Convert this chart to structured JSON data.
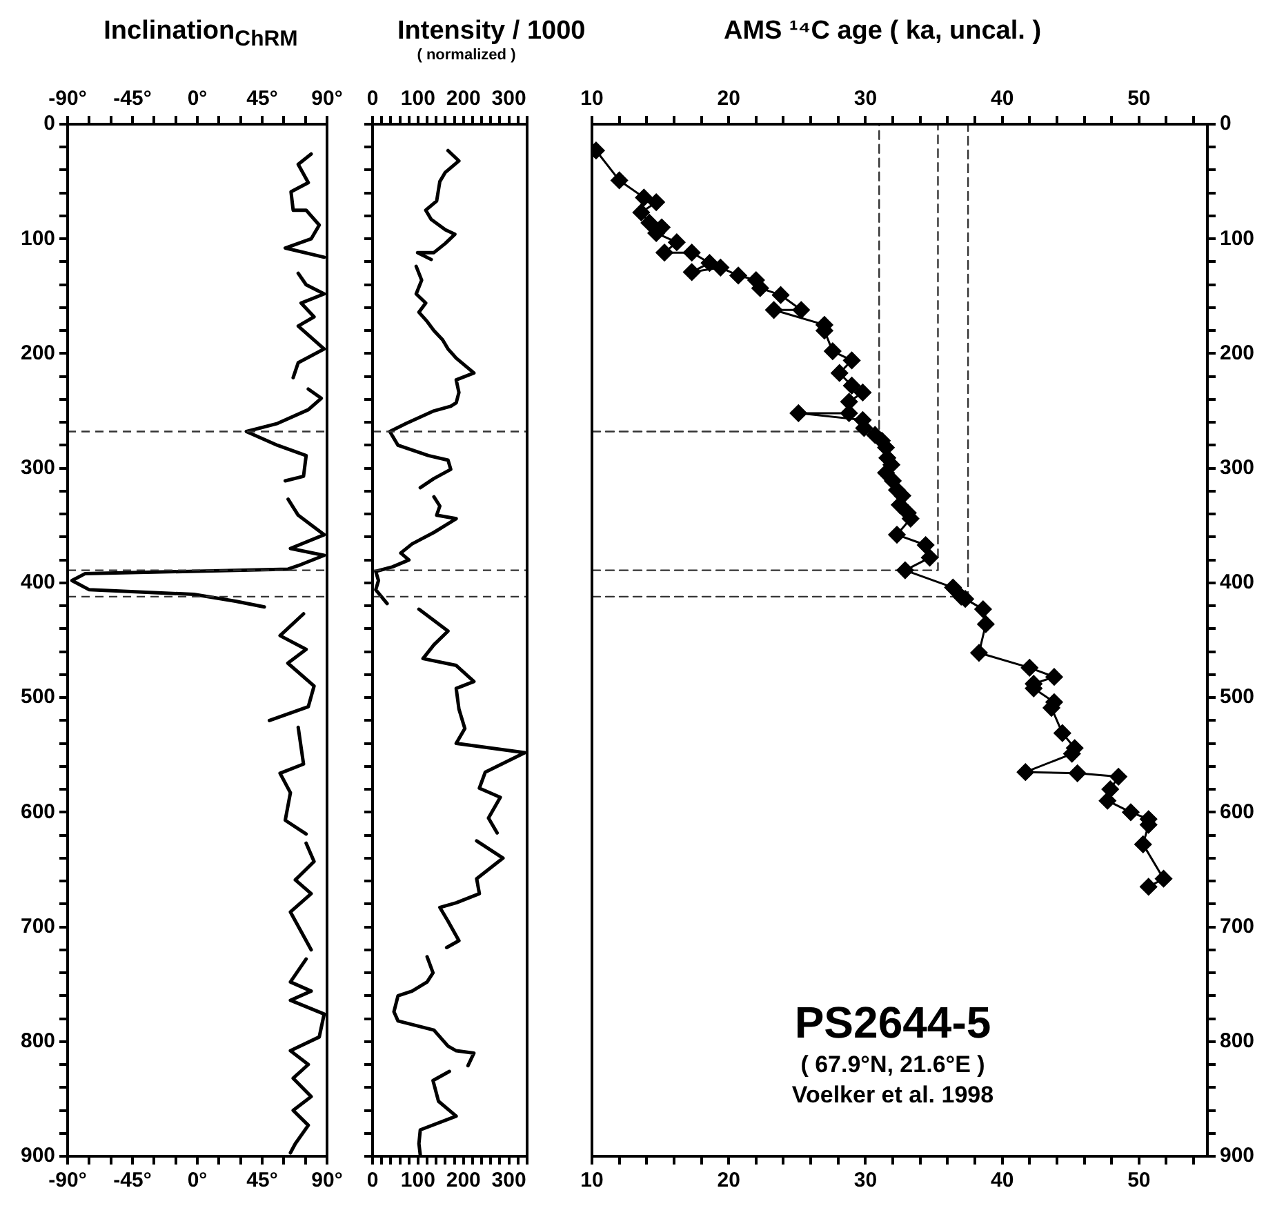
{
  "chart_data": [
    {
      "type": "line",
      "title": "Inclination$_{ChRM}$",
      "xlim": [
        -90,
        90
      ],
      "xticks": [
        {
          "value": -90,
          "label": "-90°"
        },
        {
          "value": -75,
          "label": null
        },
        {
          "value": -60,
          "label": null
        },
        {
          "value": -45,
          "label": "-45°"
        },
        {
          "value": -30,
          "label": null
        },
        {
          "value": -15,
          "label": null
        },
        {
          "value": 0,
          "label": "0°"
        },
        {
          "value": 15,
          "label": null
        },
        {
          "value": 30,
          "label": null
        },
        {
          "value": 45,
          "label": "45°"
        },
        {
          "value": 60,
          "label": null
        },
        {
          "value": 75,
          "label": null
        },
        {
          "value": 90,
          "label": "90°"
        }
      ],
      "x2lim": [
        -90,
        90
      ],
      "x2ticks": [
        {
          "value": -90,
          "label": "-90°"
        },
        {
          "value": -75,
          "label": null
        },
        {
          "value": -60,
          "label": null
        },
        {
          "value": -45,
          "label": "-45°"
        },
        {
          "value": -30,
          "label": null
        },
        {
          "value": -15,
          "label": null
        },
        {
          "value": 0,
          "label": "0°"
        },
        {
          "value": 15,
          "label": null
        },
        {
          "value": 30,
          "label": null
        },
        {
          "value": 45,
          "label": "45°"
        },
        {
          "value": 60,
          "label": null
        },
        {
          "value": 75,
          "label": null
        },
        {
          "value": 90,
          "label": "90°"
        }
      ],
      "ylim": [
        900,
        0
      ],
      "yticks": [
        0,
        {
          "value": 20,
          "label": null
        },
        {
          "value": 40,
          "label": null
        },
        {
          "value": 60,
          "label": null
        },
        {
          "value": 80,
          "label": null
        },
        100,
        {
          "value": 120,
          "label": null
        },
        {
          "value": 140,
          "label": null
        },
        {
          "value": 160,
          "label": null
        },
        {
          "value": 180,
          "label": null
        },
        200,
        {
          "value": 220,
          "label": null
        },
        {
          "value": 240,
          "label": null
        },
        {
          "value": 260,
          "label": null
        },
        {
          "value": 280,
          "label": null
        },
        300,
        {
          "value": 320,
          "label": null
        },
        {
          "value": 340,
          "label": null
        },
        {
          "value": 360,
          "label": null
        },
        {
          "value": 380,
          "label": null
        },
        400,
        {
          "value": 420,
          "label": null
        },
        {
          "value": 440,
          "label": null
        },
        {
          "value": 460,
          "label": null
        },
        {
          "value": 480,
          "label": null
        },
        500,
        {
          "value": 520,
          "label": null
        },
        {
          "value": 540,
          "label": null
        },
        {
          "value": 560,
          "label": null
        },
        {
          "value": 580,
          "label": null
        },
        600,
        {
          "value": 620,
          "label": null
        },
        {
          "value": 640,
          "label": null
        },
        {
          "value": 660,
          "label": null
        },
        {
          "value": 680,
          "label": null
        },
        700,
        {
          "value": 720,
          "label": null
        },
        {
          "value": 740,
          "label": null
        },
        {
          "value": 760,
          "label": null
        },
        {
          "value": 780,
          "label": null
        },
        800,
        {
          "value": 820,
          "label": null
        },
        {
          "value": 840,
          "label": null
        },
        {
          "value": 860,
          "label": null
        },
        {
          "value": 880,
          "label": null
        },
        900
      ],
      "series": [
        {
          "color": "#000000",
          "x": [
            79,
            70,
            77,
            65,
            66.5,
            75.5,
            84.6,
            79,
            61,
            88,
            null,
            70,
            75.5,
            88,
            72,
            81,
            70,
            88,
            70,
            66.5,
            null,
            77,
            86,
            77,
            55.6,
            34,
            55.6,
            75.5,
            73.7,
            61,
            null,
            63,
            70,
            88,
            64.6,
            88,
            72,
            63,
            -78,
            -87,
            -75,
            -2.4,
            26.6,
            46.5,
            null,
            73.7,
            57.4,
            75.5,
            62.8,
            81,
            77,
            50,
            null,
            70,
            73.7,
            57.4,
            64.6,
            61,
            75.5,
            null,
            75.5,
            81,
            68,
            79,
            64.6,
            79,
            null,
            75.5,
            64.6,
            79,
            64.6,
            88,
            84.6,
            64.6,
            77,
            66.5,
            79,
            66.5,
            77,
            68,
            64.6
          ],
          "values": [
            26,
            35,
            51,
            59,
            75,
            75,
            88,
            100,
            108,
            116,
            null,
            130,
            140,
            148,
            156,
            168,
            176,
            196,
            208,
            221,
            null,
            231,
            239,
            249,
            261,
            268,
            280,
            289,
            307,
            311,
            null,
            327,
            341,
            358,
            370,
            376,
            384,
            388,
            392,
            398,
            406,
            410,
            416,
            421,
            null,
            427,
            446,
            458,
            470,
            490,
            508,
            520,
            null,
            526,
            558,
            566,
            583,
            607,
            619,
            null,
            627,
            643,
            659,
            671,
            687,
            720,
            null,
            728,
            748,
            756,
            764,
            776,
            796,
            808,
            820,
            832,
            848,
            860,
            873,
            889,
            897
          ]
        }
      ],
      "ref_lines": [
        {
          "axis": "y",
          "value": 268,
          "color": "#333333",
          "line_style": "dashed"
        },
        {
          "axis": "y",
          "value": 389,
          "color": "#333333",
          "line_style": "dashed"
        },
        {
          "axis": "y",
          "value": 412,
          "color": "#333333",
          "line_style": "dashed"
        }
      ]
    },
    {
      "type": "line",
      "title": "Intensity / 1000",
      "subtitle": "( normalized )",
      "xlim": [
        0,
        340
      ],
      "xticks": [
        0,
        {
          "value": 20,
          "label": null
        },
        {
          "value": 40,
          "label": null
        },
        {
          "value": 60,
          "label": null
        },
        {
          "value": 80,
          "label": null
        },
        100,
        {
          "value": 120,
          "label": null
        },
        {
          "value": 140,
          "label": null
        },
        {
          "value": 160,
          "label": null
        },
        {
          "value": 180,
          "label": null
        },
        200,
        {
          "value": 220,
          "label": null
        },
        {
          "value": 240,
          "label": null
        },
        {
          "value": 260,
          "label": null
        },
        {
          "value": 280,
          "label": null
        },
        300,
        {
          "value": 320,
          "label": null
        },
        {
          "value": 340,
          "label": null
        }
      ],
      "x2lim": [
        0,
        340
      ],
      "x2ticks": [
        0,
        {
          "value": 20,
          "label": null
        },
        {
          "value": 40,
          "label": null
        },
        {
          "value": 60,
          "label": null
        },
        {
          "value": 80,
          "label": null
        },
        100,
        {
          "value": 120,
          "label": null
        },
        {
          "value": 140,
          "label": null
        },
        {
          "value": 160,
          "label": null
        },
        {
          "value": 180,
          "label": null
        },
        200,
        {
          "value": 220,
          "label": null
        },
        {
          "value": 240,
          "label": null
        },
        {
          "value": 260,
          "label": null
        },
        {
          "value": 280,
          "label": null
        },
        300,
        {
          "value": 320,
          "label": null
        },
        {
          "value": 340,
          "label": null
        }
      ],
      "ylim": [
        900,
        0
      ],
      "yticks": [
        0,
        {
          "value": 20,
          "label": null
        },
        {
          "value": 40,
          "label": null
        },
        {
          "value": 60,
          "label": null
        },
        {
          "value": 80,
          "label": null
        },
        100,
        {
          "value": 120,
          "label": null
        },
        {
          "value": 140,
          "label": null
        },
        {
          "value": 160,
          "label": null
        },
        {
          "value": 180,
          "label": null
        },
        200,
        {
          "value": 220,
          "label": null
        },
        {
          "value": 240,
          "label": null
        },
        {
          "value": 260,
          "label": null
        },
        {
          "value": 280,
          "label": null
        },
        300,
        {
          "value": 320,
          "label": null
        },
        {
          "value": 340,
          "label": null
        },
        {
          "value": 360,
          "label": null
        },
        {
          "value": 380,
          "label": null
        },
        400,
        {
          "value": 420,
          "label": null
        },
        {
          "value": 440,
          "label": null
        },
        {
          "value": 460,
          "label": null
        },
        {
          "value": 480,
          "label": null
        },
        500,
        {
          "value": 520,
          "label": null
        },
        {
          "value": 540,
          "label": null
        },
        {
          "value": 560,
          "label": null
        },
        {
          "value": 580,
          "label": null
        },
        600,
        {
          "value": 620,
          "label": null
        },
        {
          "value": 640,
          "label": null
        },
        {
          "value": 660,
          "label": null
        },
        {
          "value": 680,
          "label": null
        },
        700,
        {
          "value": 720,
          "label": null
        },
        {
          "value": 740,
          "label": null
        },
        {
          "value": 760,
          "label": null
        },
        {
          "value": 780,
          "label": null
        },
        800,
        {
          "value": 820,
          "label": null
        },
        {
          "value": 840,
          "label": null
        },
        {
          "value": 860,
          "label": null
        },
        {
          "value": 880,
          "label": null
        },
        900
      ],
      "tick_labels": "x",
      "series": [
        {
          "color": "#000000",
          "x": [
            166,
            190,
            160,
            148,
            141,
            117,
            129,
            160,
            181,
            160,
            135,
            99,
            129,
            null,
            96,
            108,
            96,
            117,
            102,
            120,
            135,
            154,
            166,
            184,
            223,
            184,
            190,
            184,
            172,
            135,
            74,
            38,
            56,
            123,
            166,
            172,
            135,
            105,
            null,
            135,
            148,
            141,
            184,
            135,
            87,
            62,
            80,
            44,
            7,
            13,
            7,
            32,
            null,
            102,
            166,
            135,
            111,
            184,
            223,
            184,
            190,
            203,
            184,
            335,
            248,
            235,
            281,
            255,
            274,
            null,
            229,
            287,
            229,
            235,
            184,
            148,
            166,
            190,
            163,
            null,
            120,
            133,
            120,
            87,
            56,
            47,
            56,
            135,
            166,
            184,
            223,
            210,
            null,
            169,
            133,
            145,
            184,
            105,
            102,
            105
          ],
          "values": [
            23,
            32,
            42,
            50,
            67,
            75,
            83,
            92,
            96,
            104,
            112,
            112,
            118,
            null,
            124,
            136,
            148,
            156,
            164,
            172,
            180,
            188,
            196,
            204,
            217,
            223,
            234,
            243,
            246,
            250,
            261,
            268,
            280,
            289,
            293,
            301,
            309,
            317,
            null,
            325,
            333,
            341,
            344,
            356,
            366,
            374,
            380,
            386,
            390,
            398,
            406,
            418,
            null,
            423,
            442,
            454,
            466,
            472,
            486,
            492,
            510,
            527,
            540,
            548,
            565,
            579,
            587,
            605,
            618,
            null,
            625,
            640,
            658,
            671,
            679,
            683,
            695,
            712,
            718,
            null,
            726,
            740,
            748,
            756,
            760,
            774,
            782,
            790,
            804,
            808,
            810,
            821,
            null,
            826,
            834,
            852,
            865,
            877,
            889,
            899
          ]
        }
      ],
      "ref_lines": [
        {
          "axis": "y",
          "value": 268,
          "color": "#333333",
          "line_style": "dashed"
        },
        {
          "axis": "y",
          "value": 389,
          "color": "#333333",
          "line_style": "dashed"
        },
        {
          "axis": "y",
          "value": 412,
          "color": "#333333",
          "line_style": "dashed"
        }
      ]
    },
    {
      "type": "line",
      "title": "AMS ¹⁴C age ( ka, uncal. )",
      "xlim": [
        10,
        55
      ],
      "xticks": [
        10,
        {
          "value": 12,
          "label": null
        },
        {
          "value": 14,
          "label": null
        },
        {
          "value": 16,
          "label": null
        },
        {
          "value": 18,
          "label": null
        },
        20,
        {
          "value": 22,
          "label": null
        },
        {
          "value": 24,
          "label": null
        },
        {
          "value": 26,
          "label": null
        },
        {
          "value": 28,
          "label": null
        },
        30,
        {
          "value": 32,
          "label": null
        },
        {
          "value": 34,
          "label": null
        },
        {
          "value": 36,
          "label": null
        },
        {
          "value": 38,
          "label": null
        },
        40,
        {
          "value": 42,
          "label": null
        },
        {
          "value": 44,
          "label": null
        },
        {
          "value": 46,
          "label": null
        },
        {
          "value": 48,
          "label": null
        },
        50,
        {
          "value": 52,
          "label": null
        },
        {
          "value": 54,
          "label": null
        }
      ],
      "x2lim": [
        10,
        55
      ],
      "x2ticks": [
        10,
        {
          "value": 12,
          "label": null
        },
        {
          "value": 14,
          "label": null
        },
        {
          "value": 16,
          "label": null
        },
        {
          "value": 18,
          "label": null
        },
        20,
        {
          "value": 22,
          "label": null
        },
        {
          "value": 24,
          "label": null
        },
        {
          "value": 26,
          "label": null
        },
        {
          "value": 28,
          "label": null
        },
        30,
        {
          "value": 32,
          "label": null
        },
        {
          "value": 34,
          "label": null
        },
        {
          "value": 36,
          "label": null
        },
        {
          "value": 38,
          "label": null
        },
        40,
        {
          "value": 42,
          "label": null
        },
        {
          "value": 44,
          "label": null
        },
        {
          "value": 46,
          "label": null
        },
        {
          "value": 48,
          "label": null
        },
        50,
        {
          "value": 52,
          "label": null
        },
        {
          "value": 54,
          "label": null
        }
      ],
      "ylim": [
        900,
        0
      ],
      "yticks": [
        0,
        {
          "value": 20,
          "label": null
        },
        {
          "value": 40,
          "label": null
        },
        {
          "value": 60,
          "label": null
        },
        {
          "value": 80,
          "label": null
        },
        100,
        {
          "value": 120,
          "label": null
        },
        {
          "value": 140,
          "label": null
        },
        {
          "value": 160,
          "label": null
        },
        {
          "value": 180,
          "label": null
        },
        200,
        {
          "value": 220,
          "label": null
        },
        {
          "value": 240,
          "label": null
        },
        {
          "value": 260,
          "label": null
        },
        {
          "value": 280,
          "label": null
        },
        300,
        {
          "value": 320,
          "label": null
        },
        {
          "value": 340,
          "label": null
        },
        {
          "value": 360,
          "label": null
        },
        {
          "value": 380,
          "label": null
        },
        400,
        {
          "value": 420,
          "label": null
        },
        {
          "value": 440,
          "label": null
        },
        {
          "value": 460,
          "label": null
        },
        {
          "value": 480,
          "label": null
        },
        500,
        {
          "value": 520,
          "label": null
        },
        {
          "value": 540,
          "label": null
        },
        {
          "value": 560,
          "label": null
        },
        {
          "value": 580,
          "label": null
        },
        600,
        {
          "value": 620,
          "label": null
        },
        {
          "value": 640,
          "label": null
        },
        {
          "value": 660,
          "label": null
        },
        {
          "value": 680,
          "label": null
        },
        700,
        {
          "value": 720,
          "label": null
        },
        {
          "value": 740,
          "label": null
        },
        {
          "value": 760,
          "label": null
        },
        {
          "value": 780,
          "label": null
        },
        800,
        {
          "value": 820,
          "label": null
        },
        {
          "value": 840,
          "label": null
        },
        {
          "value": 860,
          "label": null
        },
        {
          "value": 880,
          "label": null
        },
        900
      ],
      "series": [
        {
          "color": "#000000",
          "marker": "diamond",
          "x": [
            10.3,
            12.0,
            13.8,
            14.7,
            13.6,
            14.2,
            15.1,
            14.7,
            16.2,
            15.3,
            17.3,
            18.6,
            17.3,
            19.4,
            20.7,
            22.0,
            22.3,
            23.8,
            25.3,
            23.3,
            27.0,
            27.0,
            27.6,
            29.0,
            28.1,
            29.0,
            29.8,
            28.8,
            28.8,
            25.1,
            29.8,
            29.9,
            30.7,
            31.2,
            31.5,
            31.6,
            31.9,
            31.5,
            32.0,
            32.3,
            32.7,
            32.5,
            33.1,
            33.3,
            32.3,
            34.4,
            34.7,
            32.9,
            36.4,
            37.0,
            37.3,
            38.6,
            38.8,
            38.3,
            42.0,
            43.8,
            42.3,
            42.3,
            43.8,
            43.6,
            44.4,
            45.3,
            45.1,
            41.7,
            45.5,
            48.5,
            47.9,
            47.7,
            49.4,
            50.7,
            50.7,
            50.3,
            51.8,
            50.7
          ],
          "values": [
            23,
            49,
            64,
            68,
            77,
            86,
            90,
            95,
            103,
            112,
            112,
            121,
            129,
            125,
            132,
            136,
            143,
            149,
            162,
            162,
            175,
            180,
            198,
            206,
            217,
            228,
            234,
            242,
            252,
            252,
            258,
            265,
            271,
            276,
            282,
            291,
            297,
            304,
            311,
            319,
            324,
            332,
            339,
            344,
            358,
            367,
            378,
            389,
            404,
            412,
            414,
            423,
            436,
            461,
            474,
            482,
            488,
            492,
            504,
            509,
            531,
            544,
            549,
            565,
            566,
            569,
            580,
            590,
            600,
            606,
            611,
            628,
            658,
            665
          ]
        },
        {
          "color": "#333333",
          "line_style": "dashed",
          "x": [
            10,
            31,
            31
          ],
          "values": [
            268,
            268,
            0
          ]
        },
        {
          "color": "#333333",
          "line_style": "dashed",
          "x": [
            10,
            35.3,
            35.3
          ],
          "values": [
            389,
            389,
            0
          ]
        },
        {
          "color": "#333333",
          "line_style": "dashed",
          "x": [
            10,
            37.5,
            37.5
          ],
          "values": [
            412,
            412,
            0
          ]
        }
      ],
      "annotations": [
        "PS2644-5",
        "( 67.9°N, 21.6°E )",
        "Voelker et al. 1998"
      ]
    }
  ]
}
